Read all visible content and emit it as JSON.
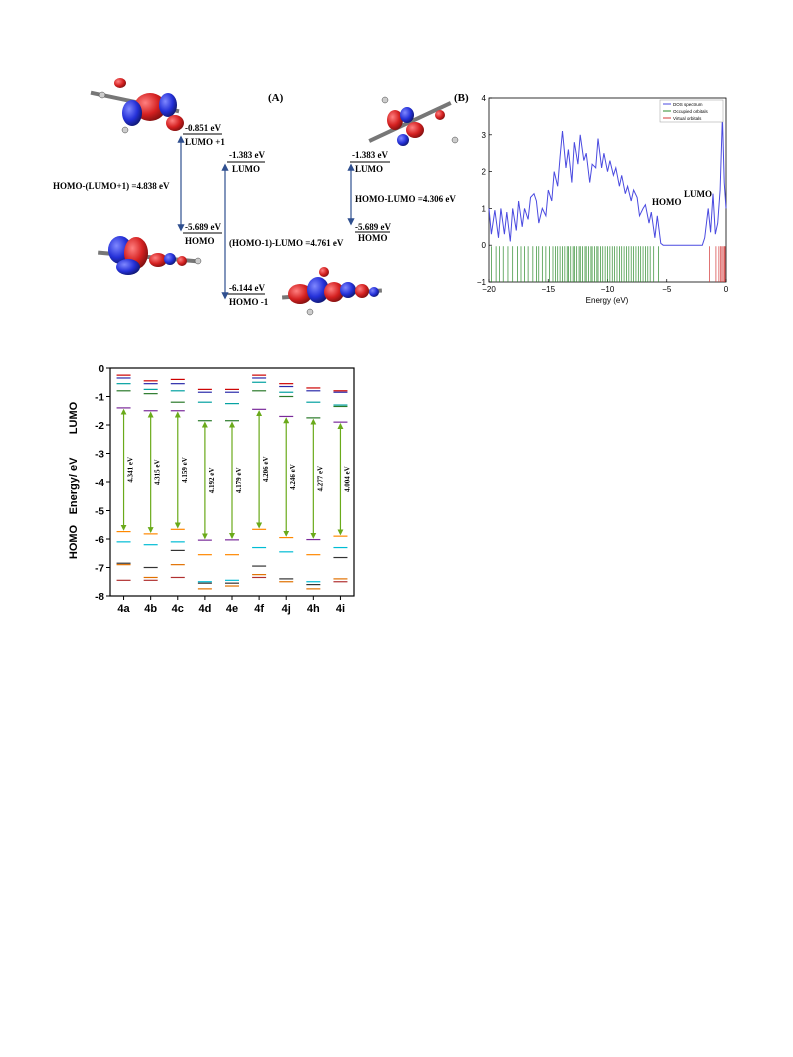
{
  "panel_a": {
    "label": "(A)",
    "col1": {
      "lumo1_energy": "-0.851 eV",
      "lumo1_label": "LUMO +1",
      "homo_energy": "-5.689 eV",
      "homo_label": "HOMO",
      "gap_text": "HOMO-(LUMO+1) =4.838 eV"
    },
    "col2": {
      "lumo_energy": "-1.383 eV",
      "lumo_label": "LUMO",
      "homo1_energy": "-6.144 eV",
      "homo1_label": "HOMO -1",
      "gap_text": "(HOMO-1)-LUMO =4.761 eV"
    },
    "col3": {
      "lumo_energy": "-1.383 eV",
      "lumo_label": "LUMO",
      "homo_energy": "-5.689 eV",
      "homo_label": "HOMO",
      "gap_text": "HOMO-LUMO =4.306 eV"
    },
    "colors": {
      "arrow": "#2f4f8f",
      "lobe_red": "#d42020",
      "lobe_blue": "#2430d8"
    },
    "icon": "molecule-orbital-icon"
  },
  "chart_data": [
    {
      "type": "line",
      "panel_label": "(B)",
      "xlabel": "Energy (eV)",
      "ylabel": "",
      "xlim": [
        -20,
        0
      ],
      "ylim": [
        -1,
        4
      ],
      "xticks": [
        "−20",
        "−15",
        "−10",
        "−5",
        "0"
      ],
      "yticks": [
        "−1",
        "0",
        "1",
        "2",
        "3",
        "4"
      ],
      "legend": [
        "DOS spectrum",
        "Occupied orbitals",
        "Virtual orbitals"
      ],
      "legend_position": "top-right",
      "annotations": [
        "HOMO",
        "LUMO"
      ],
      "colors": {
        "dos": "#4a4ae0",
        "occupied": "#2e8b2e",
        "virtual": "#d43a3a"
      },
      "series": [
        {
          "name": "DOS spectrum",
          "x": [
            -20,
            -19.8,
            -19.5,
            -19.2,
            -19,
            -18.7,
            -18.5,
            -18.2,
            -18,
            -17.7,
            -17.5,
            -17.2,
            -17,
            -16.7,
            -16.5,
            -16.2,
            -16,
            -15.8,
            -15.5,
            -15.2,
            -15,
            -14.7,
            -14.5,
            -14.2,
            -14,
            -13.8,
            -13.5,
            -13.3,
            -13,
            -12.8,
            -12.5,
            -12.3,
            -12,
            -11.8,
            -11.5,
            -11.3,
            -11,
            -10.8,
            -10.5,
            -10.3,
            -10,
            -9.8,
            -9.5,
            -9.3,
            -9,
            -8.8,
            -8.5,
            -8.3,
            -8,
            -7.8,
            -7.5,
            -7.3,
            -7,
            -6.8,
            -6.5,
            -6.3,
            -6,
            -5.8,
            -5.5,
            -5.3,
            -5,
            -4.5,
            -4,
            -3.5,
            -3,
            -2.5,
            -2,
            -1.8,
            -1.5,
            -1.3,
            -1.1,
            -0.9,
            -0.7,
            -0.5,
            -0.3,
            -0.15,
            0
          ],
          "y": [
            1.0,
            0.3,
            0.95,
            0.2,
            1.0,
            0.3,
            0.9,
            0.1,
            1.0,
            0.4,
            1.2,
            0.5,
            1.0,
            0.7,
            1.3,
            1.4,
            1.2,
            0.6,
            1.0,
            0.8,
            1.5,
            1.2,
            2.0,
            1.6,
            2.4,
            3.1,
            2.1,
            2.6,
            1.7,
            2.8,
            2.2,
            3.0,
            2.3,
            2.5,
            1.7,
            2.2,
            2.1,
            2.9,
            2.1,
            2.5,
            2.0,
            2.3,
            1.9,
            2.1,
            1.6,
            1.9,
            1.4,
            1.6,
            1.2,
            1.5,
            1.3,
            0.8,
            1.0,
            1.1,
            0.6,
            0.9,
            0.2,
            0.8,
            0.05,
            0.0,
            0.0,
            0.0,
            0.0,
            0.0,
            0.0,
            0.0,
            0.0,
            0.2,
            1.0,
            0.35,
            1.4,
            0.3,
            0.6,
            1.5,
            3.5,
            1.7,
            1.0
          ]
        },
        {
          "name": "Occupied orbitals",
          "x": [
            -19.8,
            -19.4,
            -19.1,
            -18.8,
            -18.4,
            -18.0,
            -17.6,
            -17.3,
            -17.0,
            -16.7,
            -16.3,
            -16.0,
            -15.8,
            -15.5,
            -15.2,
            -14.9,
            -14.6,
            -14.4,
            -14.2,
            -14.0,
            -13.8,
            -13.6,
            -13.4,
            -13.3,
            -13.1,
            -12.9,
            -12.8,
            -12.6,
            -12.4,
            -12.3,
            -12.1,
            -11.9,
            -11.8,
            -11.6,
            -11.4,
            -11.3,
            -11.1,
            -10.9,
            -10.8,
            -10.6,
            -10.4,
            -10.2,
            -10.0,
            -9.8,
            -9.6,
            -9.4,
            -9.2,
            -9.0,
            -8.8,
            -8.6,
            -8.4,
            -8.2,
            -8.0,
            -7.8,
            -7.6,
            -7.4,
            -7.2,
            -7.0,
            -6.8,
            -6.6,
            -6.4,
            -6.1,
            -5.69
          ]
        },
        {
          "name": "Virtual orbitals",
          "x": [
            -1.383,
            -0.851,
            -0.6,
            -0.45,
            -0.35,
            -0.25,
            -0.15,
            -0.08
          ]
        }
      ]
    },
    {
      "type": "bar",
      "ylabel": "Energy/ eV",
      "side_labels": [
        "LUMO",
        "HOMO"
      ],
      "categories": [
        "4a",
        "4b",
        "4c",
        "4d",
        "4e",
        "4f",
        "4j",
        "4h",
        "4i"
      ],
      "ylim": [
        -8,
        0
      ],
      "yticks": [
        "0",
        "-1",
        "-2",
        "-3",
        "-4",
        "-5",
        "-6",
        "-7",
        "-8"
      ],
      "gap_labels": [
        "4.341 eV",
        "4.315 eV",
        "4.159 eV",
        "4.192 eV",
        "4.179 eV",
        "4.206 eV",
        "4.246 eV",
        "4.277 eV",
        "4.004 eV"
      ],
      "lumo": [
        -1.4,
        -1.5,
        -1.5,
        -1.85,
        -1.85,
        -1.45,
        -1.7,
        -1.75,
        -1.9
      ],
      "homo": [
        -5.74,
        -5.82,
        -5.66,
        -6.04,
        -6.03,
        -5.66,
        -5.95,
        -6.02,
        -5.9
      ],
      "levels": [
        [
          -0.25,
          -0.35,
          -0.55,
          -0.8,
          -1.4,
          -5.74,
          -6.1,
          -6.85,
          -6.9,
          -7.45
        ],
        [
          -0.45,
          -0.55,
          -0.75,
          -0.9,
          -1.5,
          -5.82,
          -6.2,
          -7.0,
          -7.35,
          -7.45
        ],
        [
          -0.4,
          -0.55,
          -0.8,
          -1.2,
          -1.5,
          -5.66,
          -6.1,
          -6.4,
          -6.9,
          -7.35
        ],
        [
          -0.75,
          -0.85,
          -1.2,
          -1.85,
          -6.04,
          -6.55,
          -7.5,
          -7.55,
          -7.75
        ],
        [
          -0.75,
          -0.85,
          -1.25,
          -1.85,
          -6.03,
          -6.55,
          -7.45,
          -7.55,
          -7.65
        ],
        [
          -0.25,
          -0.35,
          -0.5,
          -0.8,
          -1.45,
          -5.66,
          -6.3,
          -6.95,
          -7.25,
          -7.35
        ],
        [
          -0.55,
          -0.65,
          -0.85,
          -1.0,
          -1.7,
          -5.95,
          -6.45,
          -7.4,
          -7.5
        ],
        [
          -0.7,
          -0.8,
          -1.2,
          -1.75,
          -6.02,
          -6.55,
          -7.5,
          -7.6,
          -7.75
        ],
        [
          -0.8,
          -0.85,
          -1.3,
          -1.35,
          -1.9,
          -5.9,
          -6.3,
          -6.65,
          -7.4,
          -7.5
        ]
      ],
      "level_colors": [
        "#cc0000",
        "#2a2aaa",
        "#00a0a0",
        "#2a7a2a",
        "#7a2a9a",
        "#ff8800",
        "#00bcd4",
        "#333333",
        "#e07000",
        "#b03030"
      ],
      "arrow_color": "#6aaa1a"
    }
  ]
}
